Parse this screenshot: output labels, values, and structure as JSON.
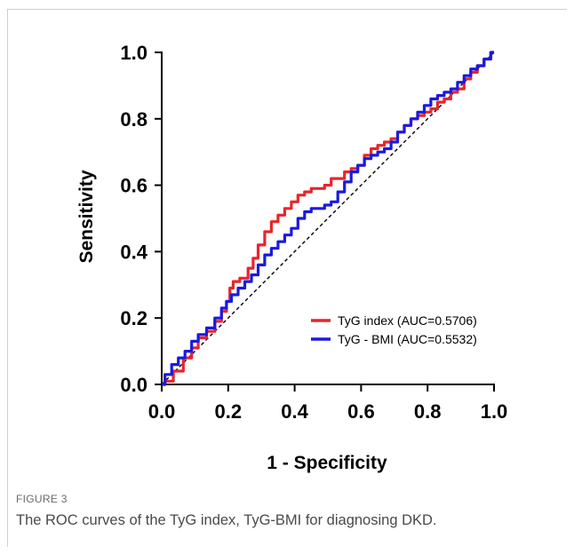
{
  "figure": {
    "label": "FIGURE 3",
    "caption": "The ROC curves of the TyG index, TyG-BMI for diagnosing DKD."
  },
  "chart_data": {
    "type": "line",
    "xlabel": "1 - Specificity",
    "ylabel": "Sensitivity",
    "xlim": [
      0,
      1
    ],
    "ylim": [
      0,
      1
    ],
    "xticks": [
      "0.0",
      "0.2",
      "0.4",
      "0.6",
      "0.8",
      "1.0"
    ],
    "yticks": [
      "0.0",
      "0.2",
      "0.4",
      "0.6",
      "0.8",
      "1.0"
    ],
    "grid": false,
    "legend_position": "lower-right",
    "reference_line": {
      "style": "dashed",
      "color": "#000000",
      "x": [
        0,
        1
      ],
      "y": [
        0,
        1
      ]
    },
    "series": [
      {
        "name": "TyG index (AUC=0.5706)",
        "color": "#e8262b",
        "x": [
          0.0,
          0.02,
          0.05,
          0.08,
          0.1,
          0.12,
          0.15,
          0.17,
          0.19,
          0.2,
          0.21,
          0.22,
          0.25,
          0.27,
          0.28,
          0.3,
          0.32,
          0.34,
          0.36,
          0.38,
          0.4,
          0.42,
          0.44,
          0.46,
          0.48,
          0.5,
          0.52,
          0.54,
          0.56,
          0.58,
          0.6,
          0.62,
          0.64,
          0.66,
          0.68,
          0.7,
          0.72,
          0.74,
          0.76,
          0.78,
          0.8,
          0.82,
          0.84,
          0.86,
          0.88,
          0.9,
          0.92,
          0.94,
          0.96,
          0.98,
          1.0
        ],
        "y": [
          0.0,
          0.01,
          0.04,
          0.08,
          0.11,
          0.14,
          0.16,
          0.19,
          0.22,
          0.25,
          0.29,
          0.31,
          0.32,
          0.35,
          0.38,
          0.42,
          0.46,
          0.49,
          0.51,
          0.53,
          0.55,
          0.57,
          0.58,
          0.59,
          0.59,
          0.6,
          0.62,
          0.62,
          0.64,
          0.65,
          0.66,
          0.69,
          0.71,
          0.72,
          0.73,
          0.74,
          0.76,
          0.78,
          0.8,
          0.81,
          0.82,
          0.83,
          0.85,
          0.86,
          0.88,
          0.89,
          0.92,
          0.94,
          0.96,
          0.98,
          1.0
        ]
      },
      {
        "name": "TyG - BMI (AUC=0.5532)",
        "color": "#1a1adf",
        "x": [
          0.0,
          0.02,
          0.04,
          0.06,
          0.08,
          0.1,
          0.12,
          0.15,
          0.17,
          0.19,
          0.2,
          0.22,
          0.24,
          0.26,
          0.28,
          0.3,
          0.32,
          0.34,
          0.36,
          0.38,
          0.4,
          0.42,
          0.44,
          0.46,
          0.48,
          0.5,
          0.52,
          0.54,
          0.56,
          0.58,
          0.6,
          0.62,
          0.64,
          0.66,
          0.68,
          0.7,
          0.72,
          0.74,
          0.76,
          0.78,
          0.8,
          0.82,
          0.84,
          0.86,
          0.88,
          0.9,
          0.92,
          0.94,
          0.96,
          0.98,
          1.0
        ],
        "y": [
          0.0,
          0.03,
          0.06,
          0.08,
          0.1,
          0.13,
          0.15,
          0.17,
          0.2,
          0.23,
          0.25,
          0.27,
          0.29,
          0.31,
          0.33,
          0.36,
          0.39,
          0.41,
          0.43,
          0.45,
          0.47,
          0.5,
          0.52,
          0.53,
          0.53,
          0.54,
          0.55,
          0.58,
          0.61,
          0.64,
          0.66,
          0.68,
          0.69,
          0.7,
          0.71,
          0.73,
          0.76,
          0.78,
          0.8,
          0.82,
          0.84,
          0.86,
          0.87,
          0.88,
          0.89,
          0.91,
          0.93,
          0.95,
          0.96,
          0.98,
          1.0
        ]
      }
    ]
  }
}
